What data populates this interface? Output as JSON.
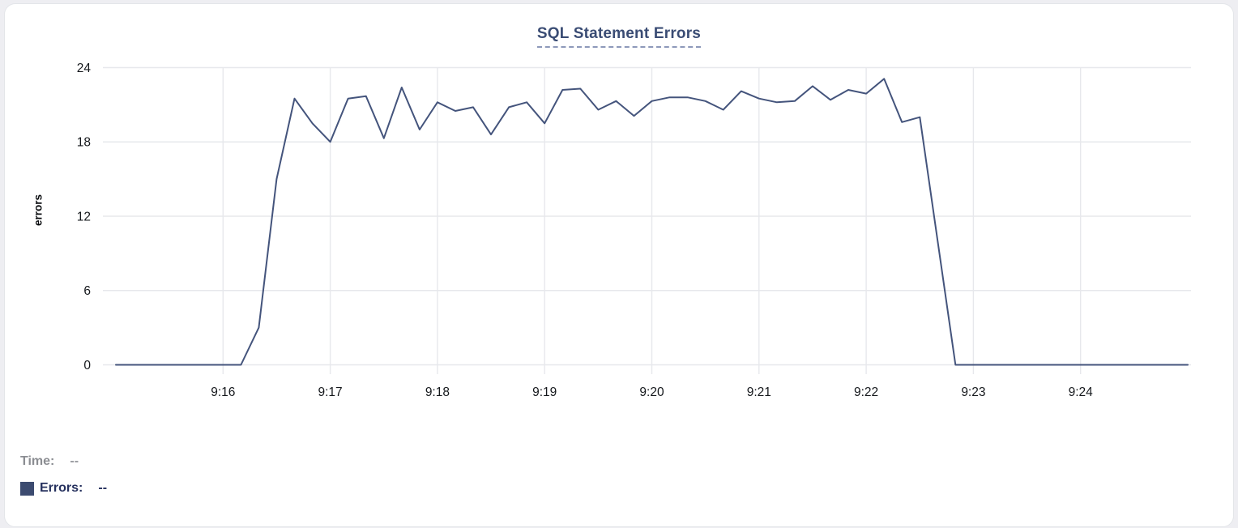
{
  "chart": {
    "title": "SQL Statement Errors",
    "y_axis_label": "errors"
  },
  "tooltip_legend": {
    "time_label": "Time:",
    "time_value": "--",
    "errors_label": "Errors:",
    "errors_value": "--"
  },
  "colors": {
    "line": "#44547c",
    "grid": "#e7e8ec",
    "axis_text": "#15181c",
    "title_text": "#3a4c74",
    "title_underline": "#8d99ba",
    "legend_swatch": "#3c4b70",
    "time_text": "#8b8d92",
    "errors_text": "#26315e",
    "card_border": "#e3e5e9",
    "page_background": "#eeeef2"
  },
  "chart_data": {
    "type": "line",
    "title": "SQL Statement Errors",
    "xlabel": "",
    "ylabel": "errors",
    "series_name": "Errors",
    "x": [
      "9:15:00",
      "9:15:10",
      "9:15:20",
      "9:15:30",
      "9:15:40",
      "9:15:50",
      "9:16:00",
      "9:16:10",
      "9:16:20",
      "9:16:30",
      "9:16:40",
      "9:16:50",
      "9:17:00",
      "9:17:10",
      "9:17:20",
      "9:17:30",
      "9:17:40",
      "9:17:50",
      "9:18:00",
      "9:18:10",
      "9:18:20",
      "9:18:30",
      "9:18:40",
      "9:18:50",
      "9:19:00",
      "9:19:10",
      "9:19:20",
      "9:19:30",
      "9:19:40",
      "9:19:50",
      "9:20:00",
      "9:20:10",
      "9:20:20",
      "9:20:30",
      "9:20:40",
      "9:20:50",
      "9:21:00",
      "9:21:10",
      "9:21:20",
      "9:21:30",
      "9:21:40",
      "9:21:50",
      "9:22:00",
      "9:22:10",
      "9:22:20",
      "9:22:30",
      "9:22:40",
      "9:22:50",
      "9:23:00",
      "9:23:10",
      "9:23:20",
      "9:23:30",
      "9:23:40",
      "9:23:50",
      "9:24:00",
      "9:24:10",
      "9:24:20",
      "9:24:30",
      "9:24:40",
      "9:24:50",
      "9:25:00"
    ],
    "values": [
      0,
      0,
      0,
      0,
      0,
      0,
      0,
      0,
      3,
      15,
      21.5,
      19.5,
      18,
      21.5,
      21.7,
      18.3,
      22.4,
      19,
      21.2,
      20.5,
      20.8,
      18.6,
      20.8,
      21.2,
      19.5,
      22.2,
      22.3,
      20.6,
      21.3,
      20.1,
      21.3,
      21.6,
      21.6,
      21.3,
      20.6,
      22.1,
      21.5,
      21.2,
      21.3,
      22.5,
      21.4,
      22.2,
      21.9,
      23.1,
      19.6,
      20,
      10,
      0,
      0,
      0,
      0,
      0,
      0,
      0,
      0,
      0,
      0,
      0,
      0,
      0,
      0
    ],
    "x_tick_labels": [
      "9:16",
      "9:17",
      "9:18",
      "9:19",
      "9:20",
      "9:21",
      "9:22",
      "9:23",
      "9:24"
    ],
    "y_ticks": [
      0,
      6,
      12,
      18,
      24
    ],
    "ylim": [
      0,
      24
    ],
    "grid": true,
    "legend_position": "bottom-left"
  }
}
